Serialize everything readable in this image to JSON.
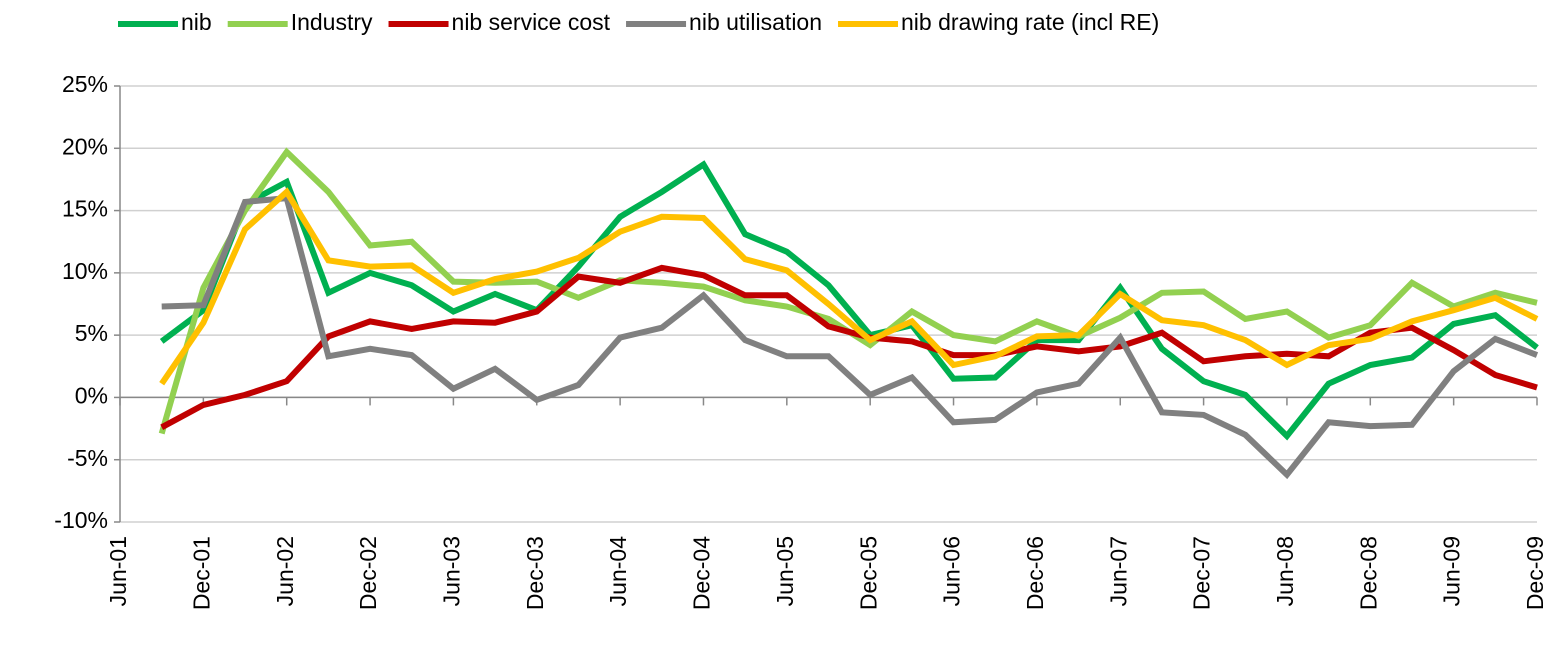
{
  "chart_data": {
    "type": "line",
    "categories": [
      "Jun-01",
      null,
      "Dec-01",
      null,
      "Jun-02",
      null,
      "Dec-02",
      null,
      "Jun-03",
      null,
      "Dec-03",
      null,
      "Jun-04",
      null,
      "Dec-04",
      null,
      "Jun-05",
      null,
      "Dec-05",
      null,
      "Jun-06",
      null,
      "Dec-06",
      null,
      "Jun-07",
      null,
      "Dec-07",
      null,
      "Jun-08",
      null,
      "Dec-08",
      null,
      "Jun-09",
      null,
      "Dec-09"
    ],
    "series": [
      {
        "name": "nib",
        "color": "#00b050",
        "values": [
          null,
          4.5,
          7,
          15.5,
          17.3,
          8.4,
          10,
          9,
          6.9,
          8.3,
          7,
          10.5,
          14.5,
          16.5,
          18.7,
          13.1,
          11.7,
          9,
          5,
          5.8,
          1.5,
          1.6,
          4.6,
          4.6,
          8.8,
          3.9,
          1.3,
          0.2,
          -3.1,
          1.1,
          2.6,
          3.2,
          5.9,
          6.6,
          4
        ]
      },
      {
        "name": "Industry",
        "color": "#92d050",
        "values": [
          null,
          -2.9,
          8.8,
          15,
          19.7,
          16.5,
          12.2,
          12.5,
          9.3,
          9.2,
          9.3,
          8,
          9.4,
          9.2,
          8.9,
          7.8,
          7.3,
          6.3,
          4.2,
          6.9,
          5,
          4.5,
          6.1,
          4.9,
          6.4,
          8.4,
          8.5,
          6.3,
          6.9,
          4.8,
          5.8,
          9.2,
          7.3,
          8.4,
          7.6
        ]
      },
      {
        "name": "nib service cost",
        "color": "#c00000",
        "values": [
          null,
          -2.4,
          -0.6,
          0.2,
          1.3,
          4.9,
          6.1,
          5.5,
          6.1,
          6,
          6.9,
          9.7,
          9.2,
          10.4,
          9.8,
          8.2,
          8.2,
          5.7,
          4.8,
          4.5,
          3.4,
          3.4,
          4.1,
          3.7,
          4.1,
          5.2,
          2.9,
          3.3,
          3.5,
          3.3,
          5.2,
          5.6,
          3.8,
          1.8,
          0.8
        ]
      },
      {
        "name": "nib utilisation",
        "color": "#808080",
        "values": [
          null,
          7.3,
          7.4,
          15.7,
          16,
          3.3,
          3.9,
          3.4,
          0.7,
          2.3,
          -0.2,
          1,
          4.8,
          5.6,
          8.2,
          4.6,
          3.3,
          3.3,
          0.2,
          1.6,
          -2,
          -1.8,
          0.4,
          1.1,
          4.8,
          -1.2,
          -1.4,
          -3,
          -6.2,
          -2,
          -2.3,
          -2.2,
          2.1,
          4.7,
          3.4
        ]
      },
      {
        "name": "nib drawing rate (incl RE)",
        "color": "#ffc000",
        "values": [
          null,
          1.1,
          6,
          13.5,
          16.5,
          11,
          10.5,
          10.6,
          8.4,
          9.5,
          10.1,
          11.2,
          13.3,
          14.5,
          14.4,
          11.1,
          10.2,
          7.5,
          4.6,
          6.1,
          2.6,
          3.3,
          4.9,
          5,
          8.3,
          6.2,
          5.8,
          4.6,
          2.6,
          4.2,
          4.7,
          6.1,
          7,
          8,
          6.3
        ]
      }
    ],
    "ylim": [
      -10,
      25
    ],
    "yticks": [
      {
        "value": -10,
        "label": "-10%"
      },
      {
        "value": -5,
        "label": "-5%"
      },
      {
        "value": 0,
        "label": "0%"
      },
      {
        "value": 5,
        "label": "5%"
      },
      {
        "value": 10,
        "label": "10%"
      },
      {
        "value": 15,
        "label": "15%"
      },
      {
        "value": 20,
        "label": "20%"
      },
      {
        "value": 25,
        "label": "25%"
      }
    ],
    "grid": true,
    "legend": "top"
  }
}
